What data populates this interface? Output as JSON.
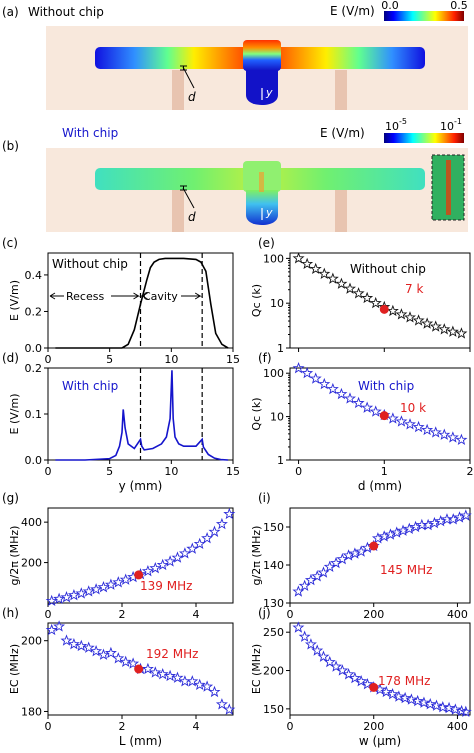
{
  "panel_a": {
    "tag": "(a)",
    "caption": "Without chip",
    "d_label": "d",
    "y_label": "y",
    "colorbar": {
      "label": "E (V/m)",
      "min_label": "0.0",
      "max_label": "0.5"
    }
  },
  "panel_b": {
    "tag": "(b)",
    "caption": "With chip",
    "d_label": "d",
    "y_label": "y",
    "colorbar": {
      "label": "E (V/m)",
      "min_label": "10",
      "min_exp": "-5",
      "max_label": "10",
      "max_exp": "-1"
    }
  },
  "chart_data": [
    {
      "id": "c",
      "tag": "(c)",
      "type": "line",
      "xlim": [
        0,
        15
      ],
      "ylim": [
        0,
        0.52
      ],
      "xticks": [
        "0",
        "5",
        "10",
        "15"
      ],
      "xtick_values": [
        0,
        5,
        10,
        15
      ],
      "yticks": [
        "0.0",
        "0.2",
        "0.4"
      ],
      "ytick_values": [
        0,
        0.2,
        0.4
      ],
      "xlabel": "",
      "ylabel": "E (V/m)",
      "annotations": [
        "Without chip",
        "Recess",
        "Cavity"
      ],
      "vlines": [
        7.5,
        12.5
      ],
      "series": [
        {
          "color": "#000000",
          "x": [
            0.6,
            1.5,
            3,
            5,
            6,
            6.5,
            7,
            7.5,
            8,
            8.3,
            8.6,
            9,
            9.5,
            10,
            11,
            12,
            12.4,
            12.8,
            13.2,
            13.6,
            14.1,
            14.6
          ],
          "y": [
            0.0,
            0.0,
            0.0,
            0.0,
            0.0,
            0.02,
            0.1,
            0.24,
            0.37,
            0.44,
            0.47,
            0.485,
            0.49,
            0.49,
            0.49,
            0.485,
            0.47,
            0.42,
            0.24,
            0.08,
            0.02,
            0.0
          ]
        }
      ]
    },
    {
      "id": "d",
      "tag": "(d)",
      "type": "line",
      "xlim": [
        0,
        15
      ],
      "ylim": [
        0,
        0.2
      ],
      "xticks": [
        "0",
        "5",
        "10",
        "15"
      ],
      "xtick_values": [
        0,
        5,
        10,
        15
      ],
      "yticks": [
        "0.0",
        "0.1",
        "0.2"
      ],
      "ytick_values": [
        0,
        0.1,
        0.2
      ],
      "xlabel": "y (mm)",
      "ylabel": "E (V/m)",
      "annotations": [
        "With chip"
      ],
      "vlines": [
        7.5,
        12.5
      ],
      "series": [
        {
          "color": "#1515cc",
          "x": [
            0.6,
            3,
            5,
            5.5,
            5.8,
            6.0,
            6.1,
            6.25,
            6.5,
            7,
            7.5,
            7.6,
            7.8,
            8.5,
            9.2,
            9.6,
            9.9,
            10.05,
            10.15,
            10.3,
            10.6,
            11,
            12,
            12.5,
            12.6,
            13,
            13.5,
            14,
            14.6
          ],
          "y": [
            0.0,
            0.0,
            0.003,
            0.01,
            0.03,
            0.06,
            0.11,
            0.07,
            0.035,
            0.025,
            0.045,
            0.03,
            0.022,
            0.025,
            0.035,
            0.05,
            0.09,
            0.195,
            0.09,
            0.05,
            0.035,
            0.03,
            0.03,
            0.045,
            0.028,
            0.012,
            0.004,
            0.001,
            0.0
          ]
        }
      ]
    },
    {
      "id": "e",
      "tag": "(e)",
      "type": "scatter",
      "xlim": [
        -0.1,
        2.0
      ],
      "ylim_log10": [
        0,
        2.12
      ],
      "log_y": true,
      "xticks": [],
      "xtick_values": [
        0,
        1,
        2
      ],
      "yticks": [
        "1",
        "10",
        "100"
      ],
      "ytick_values": [
        1,
        10,
        100
      ],
      "xlabel": "",
      "ylabel": "Qc (k)",
      "annotations": [
        "Without chip",
        "7 k"
      ],
      "highlight": {
        "x": 1.0,
        "y": 7.3,
        "color": "#e02020"
      },
      "series": [
        {
          "color": "#111111",
          "marker": "star",
          "x": [
            0,
            0.1,
            0.2,
            0.3,
            0.4,
            0.5,
            0.6,
            0.7,
            0.8,
            0.9,
            1.0,
            1.1,
            1.2,
            1.3,
            1.4,
            1.5,
            1.6,
            1.7,
            1.8,
            1.9
          ],
          "y": [
            100,
            75,
            58,
            45,
            35,
            27,
            21,
            16.5,
            13,
            10,
            8.2,
            6.7,
            5.6,
            4.8,
            4.1,
            3.5,
            3.0,
            2.6,
            2.3,
            2.1
          ]
        }
      ]
    },
    {
      "id": "f",
      "tag": "(f)",
      "type": "scatter",
      "xlim": [
        -0.1,
        2.0
      ],
      "ylim_log10": [
        0,
        2.12
      ],
      "log_y": true,
      "xticks": [
        "0",
        "1",
        "2"
      ],
      "xtick_values": [
        0,
        1,
        2
      ],
      "yticks": [
        "1",
        "10",
        "100"
      ],
      "ytick_values": [
        1,
        10,
        100
      ],
      "xlabel": "d (mm)",
      "ylabel": "Qc (k)",
      "annotations": [
        "With chip",
        "10 k"
      ],
      "highlight": {
        "x": 1.0,
        "y": 10.5,
        "color": "#e02020"
      },
      "series": [
        {
          "color": "#2a2ad8",
          "marker": "star",
          "x": [
            0,
            0.1,
            0.2,
            0.3,
            0.4,
            0.5,
            0.6,
            0.7,
            0.8,
            0.9,
            1.0,
            1.1,
            1.2,
            1.3,
            1.4,
            1.5,
            1.6,
            1.7,
            1.8,
            1.9
          ],
          "y": [
            130,
            100,
            75,
            56,
            43,
            33,
            26,
            20.5,
            16,
            13,
            10.8,
            9.0,
            7.7,
            6.6,
            5.7,
            4.9,
            4.3,
            3.8,
            3.3,
            2.9
          ]
        }
      ]
    },
    {
      "id": "g",
      "tag": "(g)",
      "type": "scatter",
      "xlim": [
        0,
        5
      ],
      "ylim": [
        0,
        470
      ],
      "xticks": [
        "0",
        "2",
        "4"
      ],
      "xtick_values": [
        0,
        2,
        4
      ],
      "yticks": [
        "200",
        "400"
      ],
      "ytick_values": [
        200,
        400
      ],
      "xlabel": "",
      "ylabel": "g/2π (MHz)",
      "annotations": [
        "139 MHz"
      ],
      "highlight": {
        "x": 2.45,
        "y": 139,
        "color": "#e02020"
      },
      "series": [
        {
          "color": "#2a2ad8",
          "marker": "star",
          "x": [
            0.1,
            0.3,
            0.5,
            0.7,
            0.9,
            1.1,
            1.3,
            1.5,
            1.7,
            1.9,
            2.1,
            2.3,
            2.5,
            2.7,
            2.9,
            3.1,
            3.3,
            3.5,
            3.7,
            3.9,
            4.1,
            4.3,
            4.5,
            4.7,
            4.9
          ],
          "y": [
            10,
            20,
            28,
            38,
            47,
            57,
            67,
            78,
            90,
            102,
            115,
            128,
            142,
            157,
            172,
            188,
            205,
            224,
            245,
            268,
            292,
            320,
            352,
            390,
            440
          ]
        }
      ]
    },
    {
      "id": "h",
      "tag": "(h)",
      "type": "scatter",
      "xlim": [
        0,
        5
      ],
      "ylim": [
        179,
        205
      ],
      "xticks": [
        "0",
        "2",
        "4"
      ],
      "xtick_values": [
        0,
        2,
        4
      ],
      "yticks": [
        "180",
        "200"
      ],
      "ytick_values": [
        180,
        200
      ],
      "xlabel": "L (mm)",
      "ylabel": "EC (MHz)",
      "annotations": [
        "192 MHz"
      ],
      "highlight": {
        "x": 2.45,
        "y": 192,
        "color": "#e02020"
      },
      "series": [
        {
          "color": "#2a2ad8",
          "marker": "star",
          "x": [
            0.1,
            0.3,
            0.5,
            0.7,
            0.9,
            1.1,
            1.3,
            1.5,
            1.7,
            1.9,
            2.1,
            2.3,
            2.5,
            2.7,
            2.9,
            3.1,
            3.3,
            3.5,
            3.7,
            3.9,
            4.1,
            4.3,
            4.5,
            4.7,
            4.9
          ],
          "y": [
            203,
            204,
            200,
            199,
            198.5,
            198,
            197,
            196,
            196.5,
            195,
            194,
            193.5,
            192,
            192,
            191,
            190.5,
            190,
            189.5,
            188.5,
            188.5,
            187.5,
            187,
            185.5,
            182,
            180.5
          ]
        }
      ]
    },
    {
      "id": "i",
      "tag": "(i)",
      "type": "scatter",
      "xlim": [
        0,
        430
      ],
      "ylim": [
        130,
        155
      ],
      "xticks": [
        "0",
        "200",
        "400"
      ],
      "xtick_values": [
        0,
        200,
        400
      ],
      "yticks": [
        "130",
        "140",
        "150"
      ],
      "ytick_values": [
        130,
        140,
        150
      ],
      "xlabel": "",
      "ylabel": "g/2π (MHz)",
      "annotations": [
        "145 MHz"
      ],
      "highlight": {
        "x": 200,
        "y": 145,
        "color": "#e02020"
      },
      "series": [
        {
          "color": "#2a2ad8",
          "marker": "star",
          "x": [
            20,
            35,
            50,
            65,
            80,
            95,
            110,
            125,
            140,
            155,
            170,
            185,
            200,
            210,
            225,
            240,
            255,
            270,
            285,
            300,
            315,
            330,
            345,
            360,
            375,
            390,
            405,
            420
          ],
          "y": [
            133,
            134.5,
            136,
            137,
            138,
            139.5,
            140.5,
            141.5,
            142.5,
            143,
            143.5,
            144.5,
            145,
            147,
            147.5,
            148,
            148.5,
            149,
            149.5,
            150,
            150.5,
            150.5,
            151,
            151.5,
            152,
            152,
            152.5,
            153
          ]
        }
      ]
    },
    {
      "id": "j",
      "tag": "(j)",
      "type": "scatter",
      "xlim": [
        0,
        430
      ],
      "ylim": [
        142,
        262
      ],
      "xticks": [
        "0",
        "200",
        "400"
      ],
      "xtick_values": [
        0,
        200,
        400
      ],
      "yticks": [
        "150",
        "200",
        "250"
      ],
      "ytick_values": [
        150,
        200,
        250
      ],
      "xlabel": "w (μm)",
      "ylabel": "EC (MHz)",
      "annotations": [
        "178 MHz"
      ],
      "highlight": {
        "x": 200,
        "y": 178,
        "color": "#e02020"
      },
      "series": [
        {
          "color": "#2a2ad8",
          "marker": "star",
          "x": [
            20,
            35,
            50,
            65,
            80,
            95,
            110,
            125,
            140,
            155,
            170,
            185,
            200,
            215,
            230,
            245,
            260,
            275,
            290,
            305,
            320,
            335,
            350,
            365,
            380,
            395,
            410,
            420
          ],
          "y": [
            256,
            244,
            234,
            226,
            218,
            211,
            205,
            200,
            195,
            190,
            186,
            182,
            178,
            175,
            172,
            169,
            166,
            164,
            162,
            160,
            158,
            156,
            154,
            152,
            151,
            149,
            147,
            146
          ]
        }
      ]
    }
  ]
}
